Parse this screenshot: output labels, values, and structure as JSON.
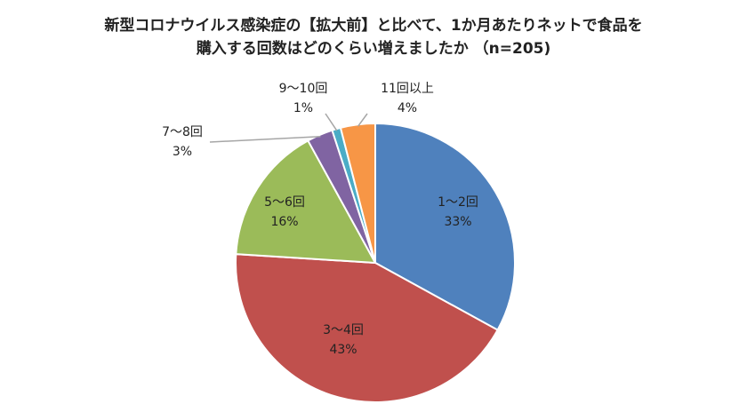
{
  "title_line1": "新型コロナウイルス感染症の【拡大前】と比べて、1か月あたりネットで食品を",
  "title_line2": "購入する回数はどのくらい増えましたか （n=205)",
  "chart_data": {
    "type": "pie",
    "title": "新型コロナウイルス感染症の【拡大前】と比べて、1か月あたりネットで食品を購入する回数はどのくらい増えましたか （n=205)",
    "start": "12 o'clock, clockwise",
    "slices": [
      {
        "label": "1～2回",
        "percent": "33%",
        "value": 33,
        "color": "#4F81BD"
      },
      {
        "label": "3～4回",
        "percent": "43%",
        "value": 43,
        "color": "#C0504D"
      },
      {
        "label": "5～6回",
        "percent": "16%",
        "value": 16,
        "color": "#9BBB59"
      },
      {
        "label": "7～8回",
        "percent": "3%",
        "value": 3,
        "color": "#8064A2"
      },
      {
        "label": "9～10回",
        "percent": "1%",
        "value": 1,
        "color": "#4BACC6"
      },
      {
        "label": "11回以上",
        "percent": "4%",
        "value": 4,
        "color": "#F79646"
      }
    ]
  }
}
